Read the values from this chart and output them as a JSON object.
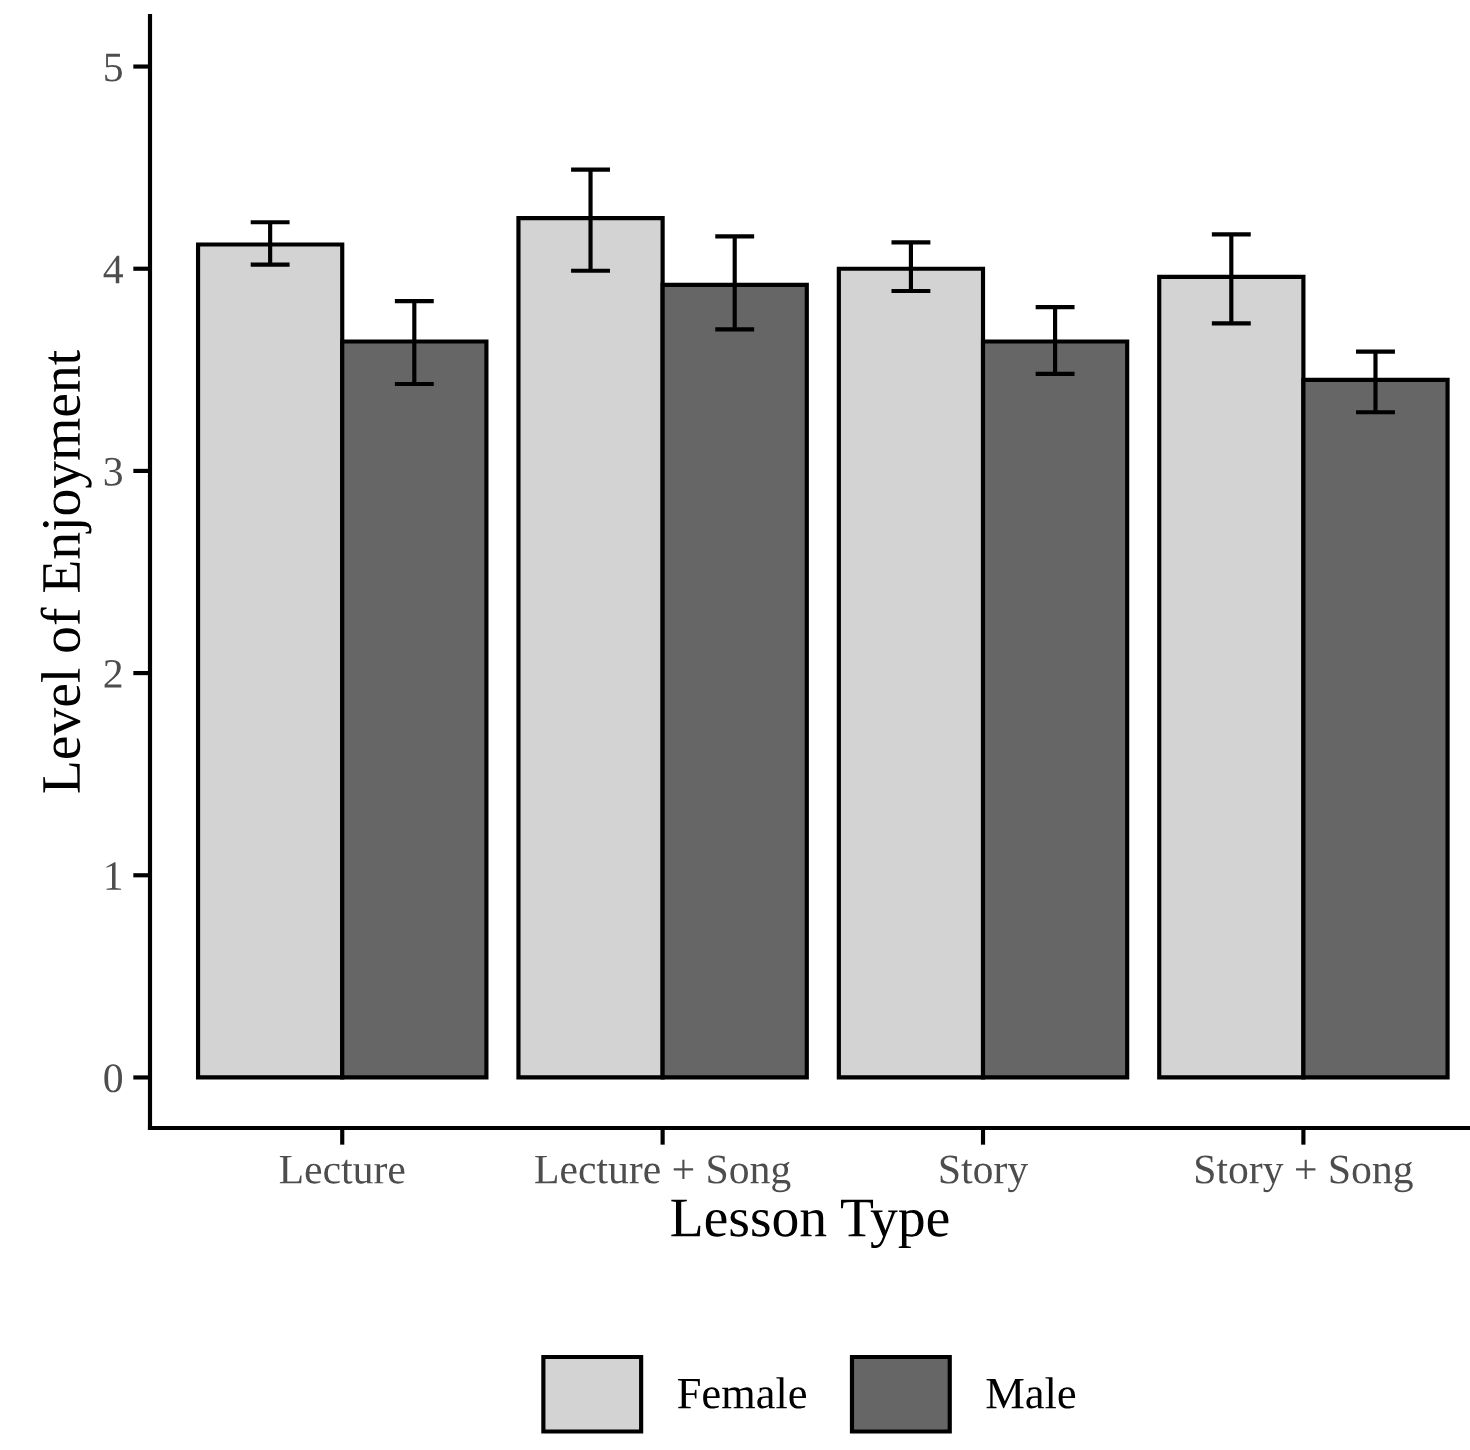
{
  "chart_data": {
    "type": "bar",
    "xlabel": "Lesson Type",
    "ylabel": "Level of Enjoyment",
    "categories": [
      "Lecture",
      "Lecture + Song",
      "Story",
      "Story + Song"
    ],
    "series": [
      {
        "name": "Female",
        "color": "#d3d3d3",
        "values": [
          4.12,
          4.25,
          4.0,
          3.96
        ],
        "errors": [
          [
            4.02,
            4.23
          ],
          [
            3.99,
            4.49
          ],
          [
            3.89,
            4.13
          ],
          [
            3.73,
            4.17
          ]
        ]
      },
      {
        "name": "Male",
        "color": "#666666",
        "values": [
          3.64,
          3.92,
          3.64,
          3.45
        ],
        "errors": [
          [
            3.43,
            3.84
          ],
          [
            3.7,
            4.16
          ],
          [
            3.48,
            3.81
          ],
          [
            3.29,
            3.59
          ]
        ]
      }
    ],
    "ylim": [
      -0.25,
      5.25
    ],
    "yticks": [
      0,
      1,
      2,
      3,
      4,
      5
    ],
    "grid": false,
    "legend": "bottom"
  }
}
